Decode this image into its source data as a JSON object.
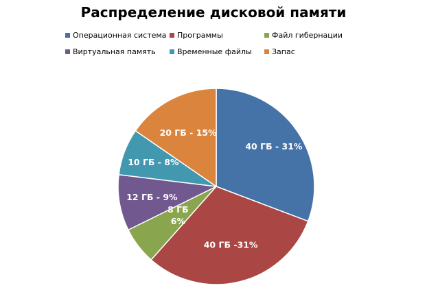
{
  "chart_data": {
    "type": "pie",
    "title": "Распределение дисковой памяти",
    "legend_position": "top",
    "slices": [
      {
        "name": "Операционная система",
        "value": 40,
        "percent": 31,
        "label_lines": [
          "40 ГБ - 31%"
        ],
        "color": "#4572a7"
      },
      {
        "name": "Программы",
        "value": 40,
        "percent": 31,
        "label_lines": [
          "40 ГБ -31%"
        ],
        "color": "#aa4643"
      },
      {
        "name": "Файл гибернации",
        "value": 8,
        "percent": 6,
        "label_lines": [
          "8 ГБ",
          "6%"
        ],
        "color": "#89a54e"
      },
      {
        "name": "Виртуальная память",
        "value": 12,
        "percent": 9,
        "label_lines": [
          "12 ГБ - 9%"
        ],
        "color": "#71588f"
      },
      {
        "name": "Временные файлы",
        "value": 10,
        "percent": 8,
        "label_lines": [
          "10 ГБ - 8%"
        ],
        "color": "#4198af"
      },
      {
        "name": "Запас",
        "value": 20,
        "percent": 15,
        "label_lines": [
          "20 ГБ - 15%"
        ],
        "color": "#db843d"
      }
    ]
  }
}
